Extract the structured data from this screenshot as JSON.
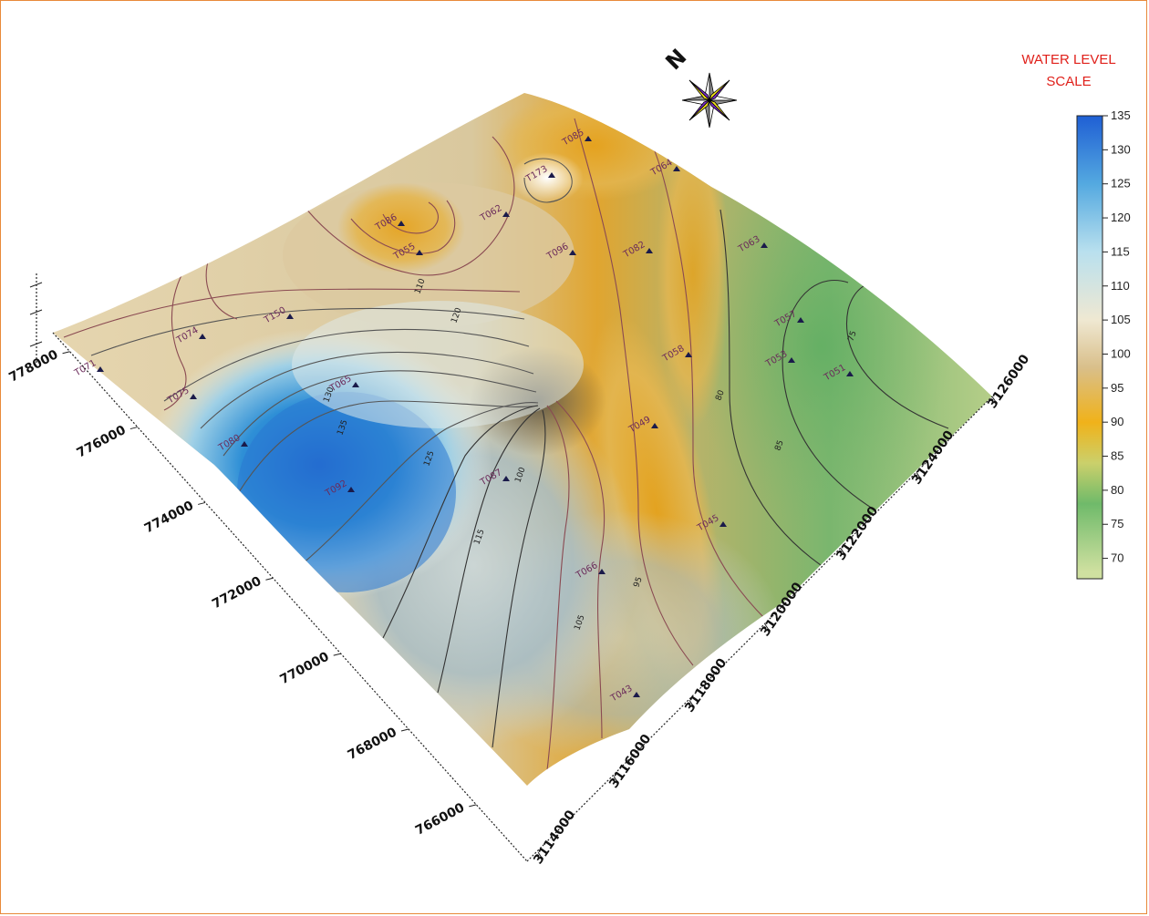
{
  "legend": {
    "title_line1": "WATER LEVEL",
    "title_line2": "SCALE",
    "ticks": [
      "135",
      "130",
      "125",
      "120",
      "115",
      "110",
      "105",
      "100",
      "95",
      "90",
      "85",
      "80",
      "75",
      "70"
    ],
    "range": [
      67,
      135
    ],
    "stops": [
      {
        "value": 135,
        "color": "#1f5fd4"
      },
      {
        "value": 125,
        "color": "#54a9e0"
      },
      {
        "value": 115,
        "color": "#b9e0ee"
      },
      {
        "value": 105,
        "color": "#efe8d2"
      },
      {
        "value": 98,
        "color": "#d9bf8a"
      },
      {
        "value": 90,
        "color": "#f0b21a"
      },
      {
        "value": 84,
        "color": "#cbd06b"
      },
      {
        "value": 78,
        "color": "#6fba6a"
      },
      {
        "value": 68,
        "color": "#cfe0a0"
      }
    ]
  },
  "compass": {
    "north_label": "N",
    "icon": "compass-rose-icon"
  },
  "axes": {
    "easting_ticks": [
      "778000",
      "776000",
      "774000",
      "772000",
      "770000",
      "768000",
      "766000"
    ],
    "northing_ticks": [
      "3114000",
      "3116000",
      "3118000",
      "3120000",
      "3122000",
      "3124000",
      "3126000"
    ]
  },
  "wells": [
    {
      "name": "T071"
    },
    {
      "name": "T074"
    },
    {
      "name": "T150"
    },
    {
      "name": "T075"
    },
    {
      "name": "T086"
    },
    {
      "name": "T055"
    },
    {
      "name": "T062"
    },
    {
      "name": "T096"
    },
    {
      "name": "T173"
    },
    {
      "name": "T085"
    },
    {
      "name": "T082"
    },
    {
      "name": "T064"
    },
    {
      "name": "T063"
    },
    {
      "name": "T057"
    },
    {
      "name": "T058"
    },
    {
      "name": "T053"
    },
    {
      "name": "T051"
    },
    {
      "name": "T049"
    },
    {
      "name": "T065"
    },
    {
      "name": "T080"
    },
    {
      "name": "T092"
    },
    {
      "name": "T087"
    },
    {
      "name": "T066"
    },
    {
      "name": "T045"
    },
    {
      "name": "T043"
    }
  ],
  "contour_labels": [
    "135",
    "125",
    "115",
    "105",
    "95",
    "100",
    "110",
    "120",
    "130",
    "85",
    "80",
    "75"
  ],
  "colors": {
    "frame": "#e8893a",
    "legend_title": "#e0201a",
    "contour": "#8a4a52"
  }
}
